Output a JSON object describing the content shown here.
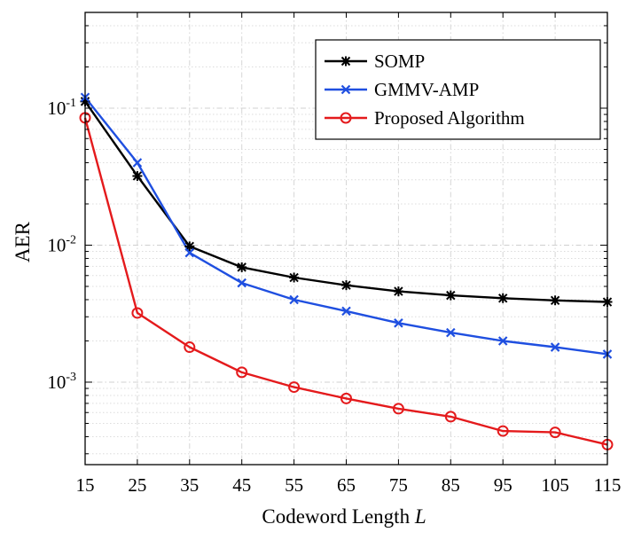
{
  "chart_data": {
    "type": "line",
    "title": "",
    "xlabel": "Codeword Length",
    "xlabel_symbol": "L",
    "ylabel": "AER",
    "yscale": "log",
    "ylim": [
      0.00025,
      0.5
    ],
    "xlim": [
      15,
      115
    ],
    "grid": true,
    "legend_position": "top-right",
    "x": [
      15,
      25,
      35,
      45,
      55,
      65,
      75,
      85,
      95,
      105,
      115
    ],
    "xticklabels": [
      "15",
      "25",
      "35",
      "45",
      "55",
      "65",
      "75",
      "85",
      "95",
      "105",
      "115"
    ],
    "yticks": [
      {
        "value": 0.1,
        "base": "10",
        "exp": "-1"
      },
      {
        "value": 0.01,
        "base": "10",
        "exp": "-2"
      },
      {
        "value": 0.001,
        "base": "10",
        "exp": "-3"
      }
    ],
    "series": [
      {
        "name": "SOMP",
        "color": "#000000",
        "marker": "star",
        "values": [
          0.112,
          0.032,
          0.0098,
          0.0069,
          0.0058,
          0.0051,
          0.0046,
          0.0043,
          0.0041,
          0.00395,
          0.00385
        ]
      },
      {
        "name": "GMMV-AMP",
        "color": "#1f4fe0",
        "marker": "x",
        "values": [
          0.12,
          0.04,
          0.0088,
          0.0053,
          0.004,
          0.0033,
          0.0027,
          0.0023,
          0.002,
          0.0018,
          0.0016
        ]
      },
      {
        "name": "Proposed Algorithm",
        "color": "#e41a1c",
        "marker": "circle",
        "values": [
          0.085,
          0.0032,
          0.0018,
          0.00118,
          0.00092,
          0.00076,
          0.00064,
          0.00056,
          0.00044,
          0.00043,
          0.00035
        ]
      }
    ]
  }
}
